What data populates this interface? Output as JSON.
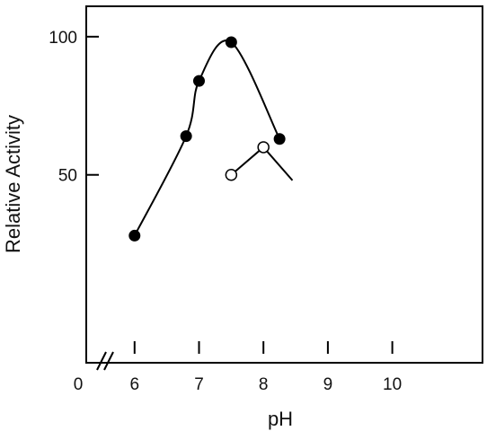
{
  "chart_data": {
    "type": "line",
    "xlabel": "pH",
    "ylabel": "Relative Activity",
    "xlim": [
      5.25,
      11.4
    ],
    "ylim": [
      -18,
      111
    ],
    "x_ticks": [
      6,
      7,
      8,
      9,
      10
    ],
    "x_tick_labels": [
      "6",
      "7",
      "8",
      "9",
      "10"
    ],
    "x_origin_label": "0",
    "axis_break": true,
    "y_ticks": [
      100,
      50
    ],
    "y_tick_labels": [
      "100",
      "50"
    ],
    "grid": false,
    "series": [
      {
        "marker": "filled-circle",
        "color": "#000000",
        "points": [
          {
            "x": 6.0,
            "y": 28
          },
          {
            "x": 6.8,
            "y": 64
          },
          {
            "x": 7.0,
            "y": 84
          },
          {
            "x": 7.5,
            "y": 98
          },
          {
            "x": 8.25,
            "y": 63
          }
        ]
      },
      {
        "marker": "open-circle",
        "color": "#000000",
        "points": [
          {
            "x": 7.5,
            "y": 50
          },
          {
            "x": 8.0,
            "y": 60
          },
          {
            "x": 8.45,
            "y": 48
          }
        ],
        "marked_points": 2
      }
    ]
  }
}
